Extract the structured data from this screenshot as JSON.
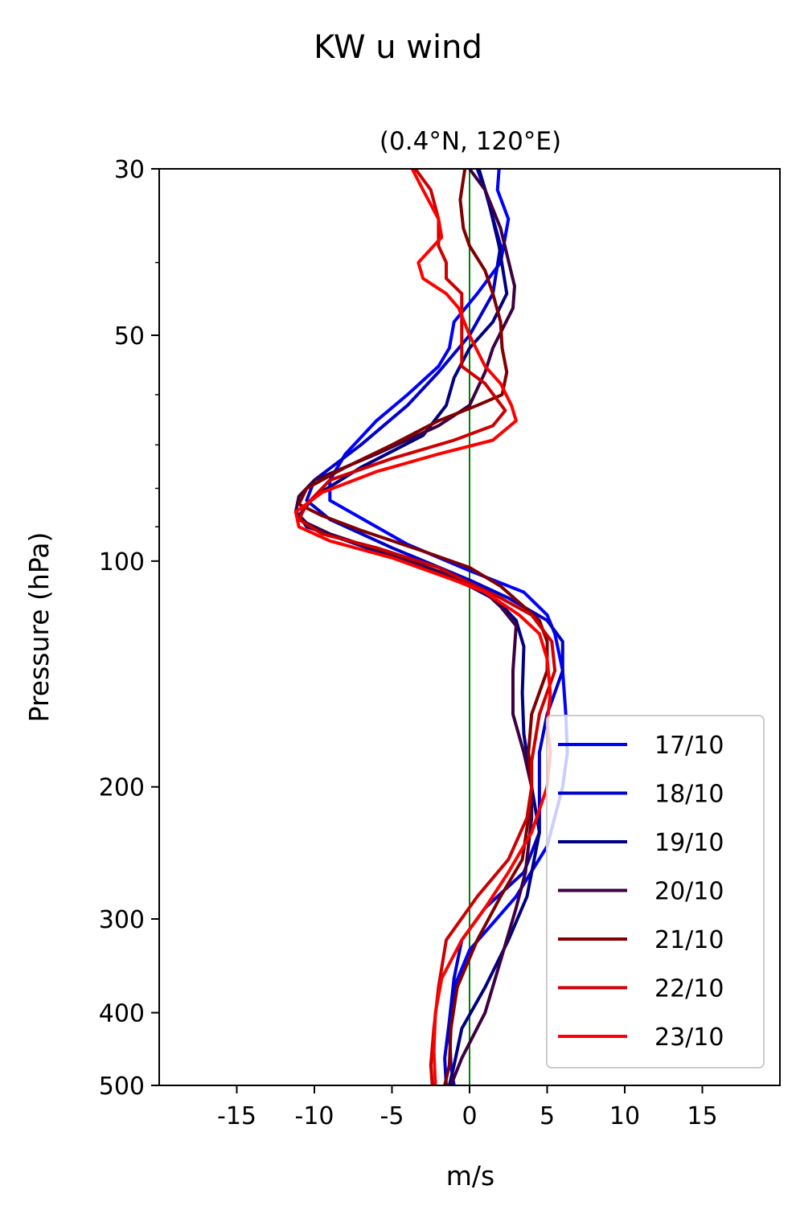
{
  "chart_data": {
    "type": "line",
    "title": "KW u wind",
    "subtitle": "(0.4°N, 120°E)",
    "xlabel": "m/s",
    "ylabel": "Pressure (hPa)",
    "xlim": [
      -20,
      20
    ],
    "ylim": [
      500,
      30
    ],
    "y_scale": "log",
    "y_inverted": true,
    "xticks": [
      -15,
      -10,
      -5,
      0,
      5,
      10,
      15
    ],
    "xtick_labels": [
      "-15",
      "-10",
      "-5",
      "0",
      "5",
      "10",
      "15"
    ],
    "yticks": [
      30,
      50,
      100,
      200,
      300,
      400,
      500
    ],
    "ytick_labels": [
      "30",
      "50",
      "100",
      "200",
      "300",
      "400",
      "500"
    ],
    "grid": false,
    "reference_line": {
      "x": 0,
      "color": "#008000"
    },
    "legend_position": "lower-right",
    "series": [
      {
        "name": "17/10",
        "color": "#0000ff",
        "points": [
          [
            1.9,
            30
          ],
          [
            1.8,
            32
          ],
          [
            2.5,
            35
          ],
          [
            2,
            40
          ],
          [
            0.5,
            44
          ],
          [
            -1,
            48
          ],
          [
            -1.3,
            52
          ],
          [
            -2,
            55
          ],
          [
            -4,
            60
          ],
          [
            -6,
            65
          ],
          [
            -8,
            72
          ],
          [
            -9,
            78
          ],
          [
            -9,
            83
          ],
          [
            -4,
            95
          ],
          [
            0,
            103
          ],
          [
            3.5,
            110
          ],
          [
            5,
            118
          ],
          [
            5.5,
            125
          ],
          [
            6,
            140
          ],
          [
            6.2,
            160
          ],
          [
            6.3,
            180
          ],
          [
            6,
            200
          ],
          [
            5,
            240
          ],
          [
            3,
            280
          ],
          [
            0,
            330
          ],
          [
            -1,
            370
          ],
          [
            -1.3,
            420
          ],
          [
            -1.2,
            470
          ],
          [
            -1,
            500
          ]
        ]
      },
      {
        "name": "18/10",
        "color": "#0000cc",
        "points": [
          [
            0.5,
            30
          ],
          [
            1,
            32
          ],
          [
            2,
            38
          ],
          [
            1.5,
            44
          ],
          [
            0,
            50
          ],
          [
            -2,
            56
          ],
          [
            -4,
            62
          ],
          [
            -7,
            70
          ],
          [
            -10,
            78
          ],
          [
            -10.5,
            83
          ],
          [
            -9,
            88
          ],
          [
            -5,
            96
          ],
          [
            0,
            106
          ],
          [
            2.5,
            112
          ],
          [
            5,
            120
          ],
          [
            6,
            128
          ],
          [
            6,
            140
          ],
          [
            5,
            160
          ],
          [
            4.5,
            180
          ],
          [
            4.5,
            200
          ],
          [
            4.5,
            230
          ],
          [
            3.5,
            260
          ],
          [
            1,
            290
          ],
          [
            -0.5,
            320
          ],
          [
            -1,
            360
          ],
          [
            -1.3,
            410
          ],
          [
            -1.6,
            460
          ],
          [
            -1.5,
            500
          ]
        ]
      },
      {
        "name": "19/10",
        "color": "#000080",
        "points": [
          [
            0.6,
            30
          ],
          [
            1.2,
            33
          ],
          [
            1.9,
            38
          ],
          [
            2.4,
            44
          ],
          [
            1.5,
            48
          ],
          [
            0,
            52
          ],
          [
            -1,
            57
          ],
          [
            -1.5,
            62
          ],
          [
            -3,
            68
          ],
          [
            -7,
            75
          ],
          [
            -10,
            82
          ],
          [
            -11,
            87
          ],
          [
            -10.5,
            90
          ],
          [
            -6,
            97
          ],
          [
            -2,
            104
          ],
          [
            0,
            108
          ],
          [
            1.8,
            113
          ],
          [
            3,
            120
          ],
          [
            3.5,
            130
          ],
          [
            3.4,
            150
          ],
          [
            3.5,
            170
          ],
          [
            4,
            200
          ],
          [
            4.5,
            230
          ],
          [
            3.7,
            280
          ],
          [
            2.5,
            320
          ],
          [
            1,
            370
          ],
          [
            -0.5,
            420
          ],
          [
            -1,
            470
          ],
          [
            -1.3,
            500
          ]
        ]
      },
      {
        "name": "20/10",
        "color": "#3d0042",
        "points": [
          [
            0,
            30
          ],
          [
            1,
            32
          ],
          [
            2,
            36
          ],
          [
            2.9,
            43
          ],
          [
            2.8,
            46
          ],
          [
            1.5,
            52
          ],
          [
            1,
            56
          ],
          [
            0,
            62
          ],
          [
            -2,
            66
          ],
          [
            -6,
            72
          ],
          [
            -10,
            78
          ],
          [
            -11,
            82
          ],
          [
            -11.2,
            86
          ],
          [
            -10.5,
            89
          ],
          [
            -9,
            92
          ],
          [
            -5,
            98
          ],
          [
            -1,
            105
          ],
          [
            1,
            110
          ],
          [
            2,
            115
          ],
          [
            3,
            122
          ],
          [
            2.8,
            140
          ],
          [
            2.8,
            160
          ],
          [
            3.5,
            180
          ],
          [
            4,
            200
          ],
          [
            4,
            220
          ],
          [
            3.6,
            260
          ],
          [
            3,
            290
          ],
          [
            2.2,
            330
          ],
          [
            1,
            400
          ],
          [
            -0.5,
            460
          ],
          [
            -1.2,
            500
          ]
        ]
      },
      {
        "name": "21/10",
        "color": "#800000",
        "points": [
          [
            -0.3,
            30
          ],
          [
            -0.6,
            33
          ],
          [
            -0.4,
            36
          ],
          [
            0,
            38
          ],
          [
            1,
            41
          ],
          [
            1.5,
            44
          ],
          [
            2,
            48
          ],
          [
            2.1,
            52
          ],
          [
            2.4,
            56
          ],
          [
            2.1,
            60
          ],
          [
            0.5,
            62
          ],
          [
            -2,
            65
          ],
          [
            -5,
            70
          ],
          [
            -8,
            75
          ],
          [
            -10.5,
            80
          ],
          [
            -11,
            84
          ],
          [
            -9.5,
            87
          ],
          [
            -7,
            91
          ],
          [
            -3,
            97
          ],
          [
            0,
            102
          ],
          [
            2,
            108
          ],
          [
            3.5,
            115
          ],
          [
            4.5,
            120
          ],
          [
            5,
            128
          ],
          [
            5,
            140
          ],
          [
            4,
            160
          ],
          [
            3.8,
            180
          ],
          [
            4,
            200
          ],
          [
            3.8,
            220
          ],
          [
            3.4,
            250
          ],
          [
            2,
            280
          ],
          [
            0.5,
            320
          ],
          [
            -0.8,
            370
          ],
          [
            -1.2,
            420
          ],
          [
            -1.3,
            470
          ],
          [
            -1.6,
            500
          ]
        ]
      },
      {
        "name": "22/10",
        "color": "#cc0000",
        "points": [
          [
            -3.5,
            30
          ],
          [
            -2.5,
            32
          ],
          [
            -2,
            35
          ],
          [
            -2,
            38
          ],
          [
            -1.5,
            40
          ],
          [
            -1.5,
            42
          ],
          [
            -0.5,
            44
          ],
          [
            -0.5,
            48
          ],
          [
            -0.5,
            52
          ],
          [
            -0.5,
            55
          ],
          [
            1,
            58
          ],
          [
            2.3,
            63
          ],
          [
            1.5,
            66
          ],
          [
            -1,
            69
          ],
          [
            -5,
            73
          ],
          [
            -9,
            78
          ],
          [
            -10.5,
            84
          ],
          [
            -11,
            88
          ],
          [
            -9.5,
            92
          ],
          [
            -6,
            96
          ],
          [
            -2,
            102
          ],
          [
            0,
            107
          ],
          [
            2,
            112
          ],
          [
            4,
            118
          ],
          [
            5.3,
            128
          ],
          [
            5.5,
            140
          ],
          [
            4.5,
            160
          ],
          [
            4,
            185
          ],
          [
            4,
            200
          ],
          [
            3.7,
            220
          ],
          [
            2.5,
            250
          ],
          [
            0.5,
            280
          ],
          [
            -1.5,
            320
          ],
          [
            -2,
            370
          ],
          [
            -2.3,
            420
          ],
          [
            -2.5,
            470
          ],
          [
            -2.4,
            500
          ]
        ]
      },
      {
        "name": "23/10",
        "color": "#ff0000",
        "points": [
          [
            -3.7,
            30
          ],
          [
            -3,
            32
          ],
          [
            -2,
            35
          ],
          [
            -1.8,
            37
          ],
          [
            -3.3,
            40
          ],
          [
            -3,
            42
          ],
          [
            -1.5,
            44
          ],
          [
            -0.7,
            46
          ],
          [
            0,
            50
          ],
          [
            1,
            55
          ],
          [
            2,
            58
          ],
          [
            2.7,
            62
          ],
          [
            3,
            65
          ],
          [
            1.5,
            69
          ],
          [
            -2,
            72
          ],
          [
            -6,
            76
          ],
          [
            -9.5,
            81
          ],
          [
            -11.2,
            86
          ],
          [
            -11,
            90
          ],
          [
            -9,
            94
          ],
          [
            -5,
            99
          ],
          [
            -1,
            106
          ],
          [
            1,
            110
          ],
          [
            3.2,
            118
          ],
          [
            4.5,
            125
          ],
          [
            5,
            135
          ],
          [
            5.2,
            150
          ],
          [
            5,
            165
          ],
          [
            5.2,
            180
          ],
          [
            5,
            200
          ],
          [
            4,
            230
          ],
          [
            2.5,
            260
          ],
          [
            1,
            290
          ],
          [
            -0.5,
            320
          ],
          [
            -1.8,
            360
          ],
          [
            -2.2,
            400
          ],
          [
            -2.3,
            450
          ],
          [
            -2.2,
            500
          ]
        ]
      }
    ]
  }
}
